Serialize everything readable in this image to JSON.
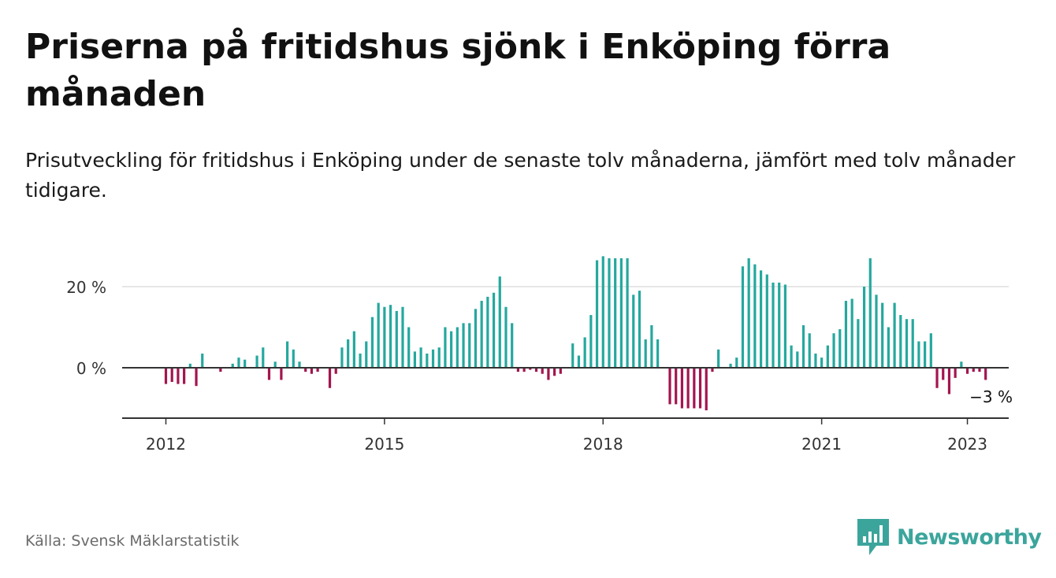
{
  "title": "Priserna på fritidshus sjönk i Enköping förra månaden",
  "subtitle": "Prisutveckling för fritidshus i Enköping under de senaste tolv månaderna, jämfört med tolv månader tidigare.",
  "source": "Källa: Svensk Mäklarstatistik",
  "brand": "Newsworthy",
  "colors": {
    "positive": "#25a89e",
    "negative": "#a3154f",
    "grid": "#dddddd",
    "axis": "#333333",
    "brand": "#3ba59c"
  },
  "chart_data": {
    "type": "bar",
    "start": "2012-01",
    "yticks": [
      {
        "value": 0,
        "label": "0 %"
      },
      {
        "value": 20,
        "label": "20 %"
      }
    ],
    "xticks": [
      {
        "index": 0,
        "label": "2012"
      },
      {
        "index": 36,
        "label": "2015"
      },
      {
        "index": 72,
        "label": "2018"
      },
      {
        "index": 108,
        "label": "2021"
      },
      {
        "index": 132,
        "label": "2023"
      }
    ],
    "ylim": [
      -12,
      28
    ],
    "annotation": {
      "index": 132,
      "label": "−3 %"
    },
    "values": [
      -4,
      -3.5,
      -4,
      -4,
      1,
      -4.5,
      3.5,
      0,
      0,
      -1,
      0,
      1,
      2.5,
      2,
      0,
      3,
      5,
      -3,
      1.5,
      -3,
      6.5,
      4.5,
      1.5,
      -1,
      -1.5,
      -1,
      0,
      -5,
      -1.5,
      5,
      7,
      9,
      3.5,
      6.5,
      12.5,
      16,
      15,
      15.5,
      14,
      15,
      10,
      4,
      5,
      3.5,
      4.5,
      5,
      10,
      9,
      10,
      11,
      11,
      14.5,
      16.5,
      17.5,
      18.5,
      22.5,
      15,
      11,
      -1,
      -1,
      -0.5,
      -1,
      -1.5,
      -3,
      -2,
      -1.5,
      0,
      6,
      3,
      7.5,
      13,
      26.5,
      27.5,
      27,
      27,
      27,
      27,
      18,
      19,
      7,
      10.5,
      7,
      0,
      -9,
      -9,
      -10,
      -10,
      -10,
      -10,
      -10.5,
      -1,
      4.5,
      0,
      1,
      2.5,
      25,
      27,
      25.5,
      24,
      23,
      21,
      21,
      20.5,
      5.5,
      4,
      10.5,
      8.5,
      3.5,
      2.5,
      5.5,
      8.5,
      9.5,
      16.5,
      17,
      12,
      20,
      27,
      18,
      16,
      10,
      16,
      13,
      12,
      12,
      6.5,
      6.5,
      8.5,
      -5,
      -3,
      -6.5,
      -2.5,
      1.5,
      -1.5,
      -1,
      -1,
      -3
    ]
  }
}
